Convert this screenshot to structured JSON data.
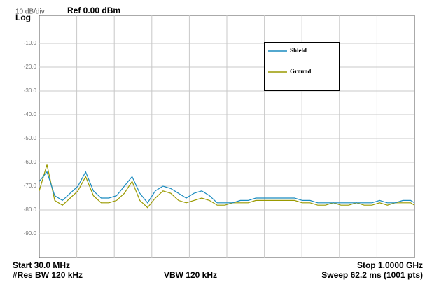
{
  "chart_data": {
    "type": "line",
    "scale_label": "10 dB/div",
    "scale_type": "Log",
    "title": "Ref 0.00 dBm",
    "start_label": "Start 30.0 MHz",
    "stop_label": "Stop 1.0000 GHz",
    "rbw_label": "#Res BW 120 kHz",
    "vbw_label": "VBW 120 kHz",
    "sweep_label": "Sweep  62.2 ms (1001 pts)",
    "x": [
      30,
      50,
      70,
      90,
      110,
      130,
      150,
      170,
      190,
      210,
      230,
      250,
      270,
      290,
      310,
      330,
      350,
      370,
      390,
      410,
      430,
      450,
      470,
      490,
      510,
      530,
      550,
      570,
      590,
      610,
      630,
      650,
      670,
      690,
      710,
      730,
      750,
      770,
      790,
      810,
      830,
      850,
      870,
      890,
      910,
      930,
      950,
      970,
      990,
      1000
    ],
    "xlim": [
      30,
      1000
    ],
    "ylim": [
      -100,
      0
    ],
    "yticks": [
      {
        "value": -10,
        "label": "-10.0"
      },
      {
        "value": -20,
        "label": "-20.0"
      },
      {
        "value": -30,
        "label": "-30.0"
      },
      {
        "value": -40,
        "label": "-40.0"
      },
      {
        "value": -50,
        "label": "-50.0"
      },
      {
        "value": -60,
        "label": "-60.0"
      },
      {
        "value": -70,
        "label": "-70.0"
      },
      {
        "value": -80,
        "label": "-80.0"
      },
      {
        "value": -90,
        "label": "-90.0"
      }
    ],
    "grid": true,
    "series": [
      {
        "name": "Shield",
        "color": "#1a8bbf",
        "values": [
          -68,
          -64,
          -74,
          -76,
          -73,
          -70,
          -64,
          -72,
          -75,
          -75,
          -74,
          -70,
          -66,
          -73,
          -77,
          -72,
          -70,
          -71,
          -73,
          -75,
          -73,
          -72,
          -74,
          -77,
          -77,
          -77,
          -76,
          -76,
          -75,
          -75,
          -75,
          -75,
          -75,
          -75,
          -76,
          -76,
          -77,
          -77,
          -77,
          -77,
          -77,
          -77,
          -77,
          -77,
          -76,
          -77,
          -77,
          -76,
          -76,
          -77
        ]
      },
      {
        "name": "Ground",
        "color": "#9a9a00",
        "values": [
          -72,
          -61,
          -76,
          -78,
          -75,
          -72,
          -66,
          -74,
          -77,
          -77,
          -76,
          -73,
          -68,
          -76,
          -79,
          -75,
          -72,
          -73,
          -76,
          -77,
          -76,
          -75,
          -76,
          -78,
          -78,
          -77,
          -77,
          -77,
          -76,
          -76,
          -76,
          -76,
          -76,
          -76,
          -77,
          -77,
          -78,
          -78,
          -77,
          -78,
          -78,
          -77,
          -78,
          -78,
          -77,
          -78,
          -77,
          -77,
          -77,
          -78
        ]
      }
    ]
  }
}
